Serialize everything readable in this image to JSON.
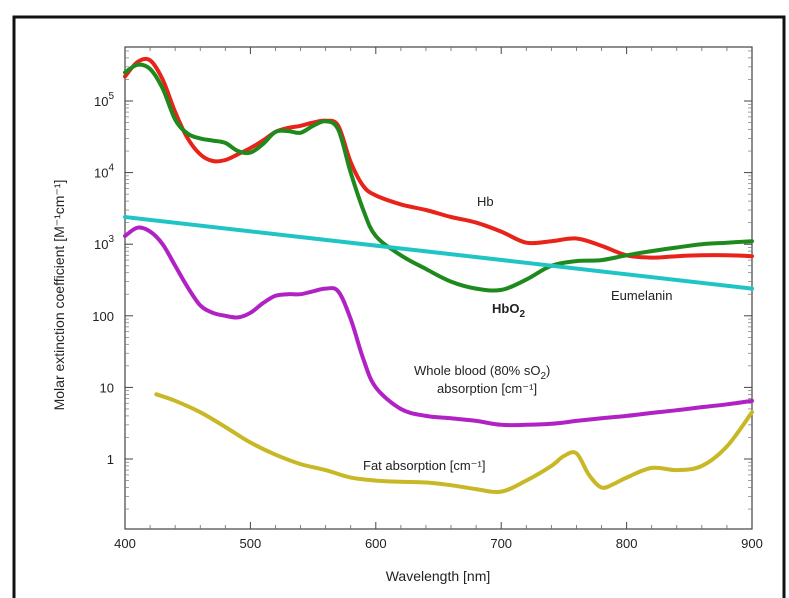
{
  "chart_data": {
    "type": "line",
    "xlabel": "Wavelength [nm]",
    "ylabel": "Molar extinction coefficient  [M⁻¹cm⁻¹]",
    "xlim": [
      400,
      900
    ],
    "ylim": [
      0.1,
      500000
    ],
    "y_scale": "log",
    "grid": false,
    "x_ticks": [
      "400",
      "500",
      "600",
      "700",
      "800",
      "900"
    ],
    "y_ticks": [
      {
        "value": 1,
        "base": "1",
        "exp": ""
      },
      {
        "value": 10,
        "base": "10",
        "exp": ""
      },
      {
        "value": 100,
        "base": "100",
        "exp": ""
      },
      {
        "value": 1000,
        "base": "10",
        "exp": "3"
      },
      {
        "value": 10000,
        "base": "10",
        "exp": "4"
      },
      {
        "value": 100000,
        "base": "10",
        "exp": "5"
      }
    ],
    "series": [
      {
        "name": "Hb",
        "color": "#e8241a",
        "x": [
          400,
          410,
          420,
          430,
          440,
          450,
          460,
          470,
          480,
          490,
          500,
          510,
          520,
          530,
          540,
          550,
          560,
          570,
          580,
          590,
          600,
          620,
          640,
          660,
          680,
          700,
          720,
          740,
          760,
          780,
          800,
          820,
          840,
          860,
          880,
          900
        ],
        "y": [
          220000,
          350000,
          370000,
          200000,
          70000,
          30000,
          18000,
          14500,
          15000,
          18000,
          22000,
          28000,
          37000,
          42000,
          45000,
          50000,
          53000,
          45000,
          14000,
          6500,
          4800,
          3600,
          3000,
          2400,
          2000,
          1500,
          1050,
          1100,
          1200,
          950,
          700,
          650,
          680,
          700,
          700,
          680
        ]
      },
      {
        "name": "HbO2",
        "color": "#1e8a1e",
        "x": [
          400,
          410,
          420,
          430,
          440,
          450,
          460,
          470,
          480,
          490,
          500,
          510,
          520,
          530,
          540,
          550,
          560,
          570,
          580,
          590,
          600,
          620,
          640,
          660,
          680,
          700,
          720,
          740,
          760,
          780,
          800,
          820,
          840,
          860,
          880,
          900
        ],
        "y": [
          250000,
          320000,
          280000,
          150000,
          55000,
          35000,
          30000,
          28000,
          26000,
          20000,
          19000,
          25000,
          37000,
          38000,
          36000,
          45000,
          52000,
          40000,
          10000,
          3000,
          1300,
          700,
          450,
          300,
          240,
          230,
          320,
          500,
          580,
          600,
          700,
          800,
          900,
          1000,
          1050,
          1100
        ]
      },
      {
        "name": "Eumelanin",
        "color": "#20c4c4",
        "x": [
          400,
          900
        ],
        "y": [
          2400,
          240
        ]
      },
      {
        "name": "Whole blood (80% sO2) absorption [cm⁻¹]",
        "color": "#b022c4",
        "x": [
          400,
          410,
          420,
          430,
          440,
          450,
          460,
          470,
          480,
          490,
          500,
          510,
          520,
          530,
          540,
          550,
          560,
          570,
          580,
          590,
          600,
          620,
          640,
          660,
          680,
          700,
          720,
          740,
          760,
          780,
          800,
          820,
          840,
          860,
          880,
          900
        ],
        "y": [
          1300,
          1700,
          1500,
          1000,
          500,
          250,
          140,
          110,
          100,
          95,
          110,
          150,
          190,
          200,
          200,
          220,
          240,
          220,
          90,
          25,
          10,
          5,
          4,
          3.7,
          3.4,
          3,
          3,
          3.1,
          3.4,
          3.7,
          4,
          4.4,
          4.8,
          5.3,
          5.8,
          6.5
        ]
      },
      {
        "name": "Fat absorption [cm⁻¹]",
        "color": "#c8b826",
        "x": [
          425,
          440,
          460,
          480,
          500,
          520,
          540,
          560,
          580,
          600,
          620,
          640,
          660,
          680,
          700,
          720,
          740,
          750,
          760,
          770,
          780,
          790,
          800,
          820,
          840,
          860,
          880,
          900
        ],
        "y": [
          8,
          6.5,
          4.5,
          2.8,
          1.7,
          1.15,
          0.85,
          0.7,
          0.55,
          0.5,
          0.48,
          0.47,
          0.43,
          0.38,
          0.35,
          0.5,
          0.8,
          1.1,
          1.2,
          0.6,
          0.4,
          0.45,
          0.55,
          0.75,
          0.7,
          0.8,
          1.5,
          4.5
        ]
      }
    ],
    "annotations": [
      {
        "id": "hb",
        "base": "Hb",
        "sub": "",
        "tail": ""
      },
      {
        "id": "hbo2",
        "base": "HbO",
        "sub": "2",
        "tail": ""
      },
      {
        "id": "eumelanin",
        "base": "Eumelanin",
        "sub": "",
        "tail": ""
      },
      {
        "id": "blood1",
        "base": "Whole blood (80% sO",
        "sub": "2",
        "tail": ")"
      },
      {
        "id": "blood2",
        "base": "absorption [cm⁻¹]",
        "sub": "",
        "tail": ""
      },
      {
        "id": "fat",
        "base": "Fat absorption [cm⁻¹]",
        "sub": "",
        "tail": ""
      }
    ]
  }
}
